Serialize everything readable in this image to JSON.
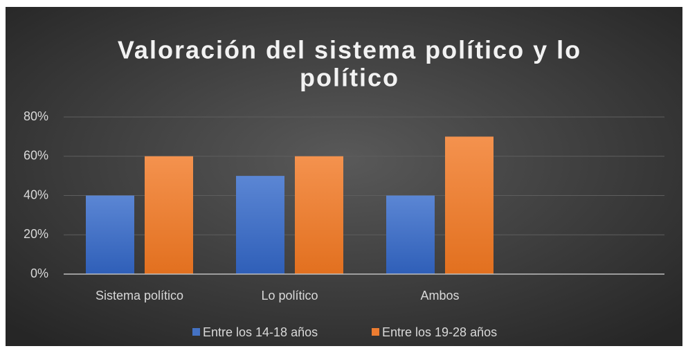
{
  "chart_data": {
    "type": "bar",
    "title": [
      "Valoración del sistema político y lo",
      "político"
    ],
    "categories": [
      "Sistema político",
      "Lo político",
      "Ambos",
      null
    ],
    "series": [
      {
        "name": "Entre los 14-18 años",
        "color": "#4472c4",
        "values": [
          40,
          50,
          40,
          null
        ]
      },
      {
        "name": "Entre los 19-28 años",
        "color": "#ed7d31",
        "values": [
          60,
          60,
          70,
          null
        ]
      }
    ],
    "ylim": [
      0,
      80
    ],
    "yticks": [
      {
        "value": 0,
        "label": "0%"
      },
      {
        "value": 20,
        "label": "20%"
      },
      {
        "value": 40,
        "label": "40%"
      },
      {
        "value": 60,
        "label": "60%"
      },
      {
        "value": 80,
        "label": "80%"
      }
    ],
    "grid": true,
    "legend": "bottom"
  }
}
